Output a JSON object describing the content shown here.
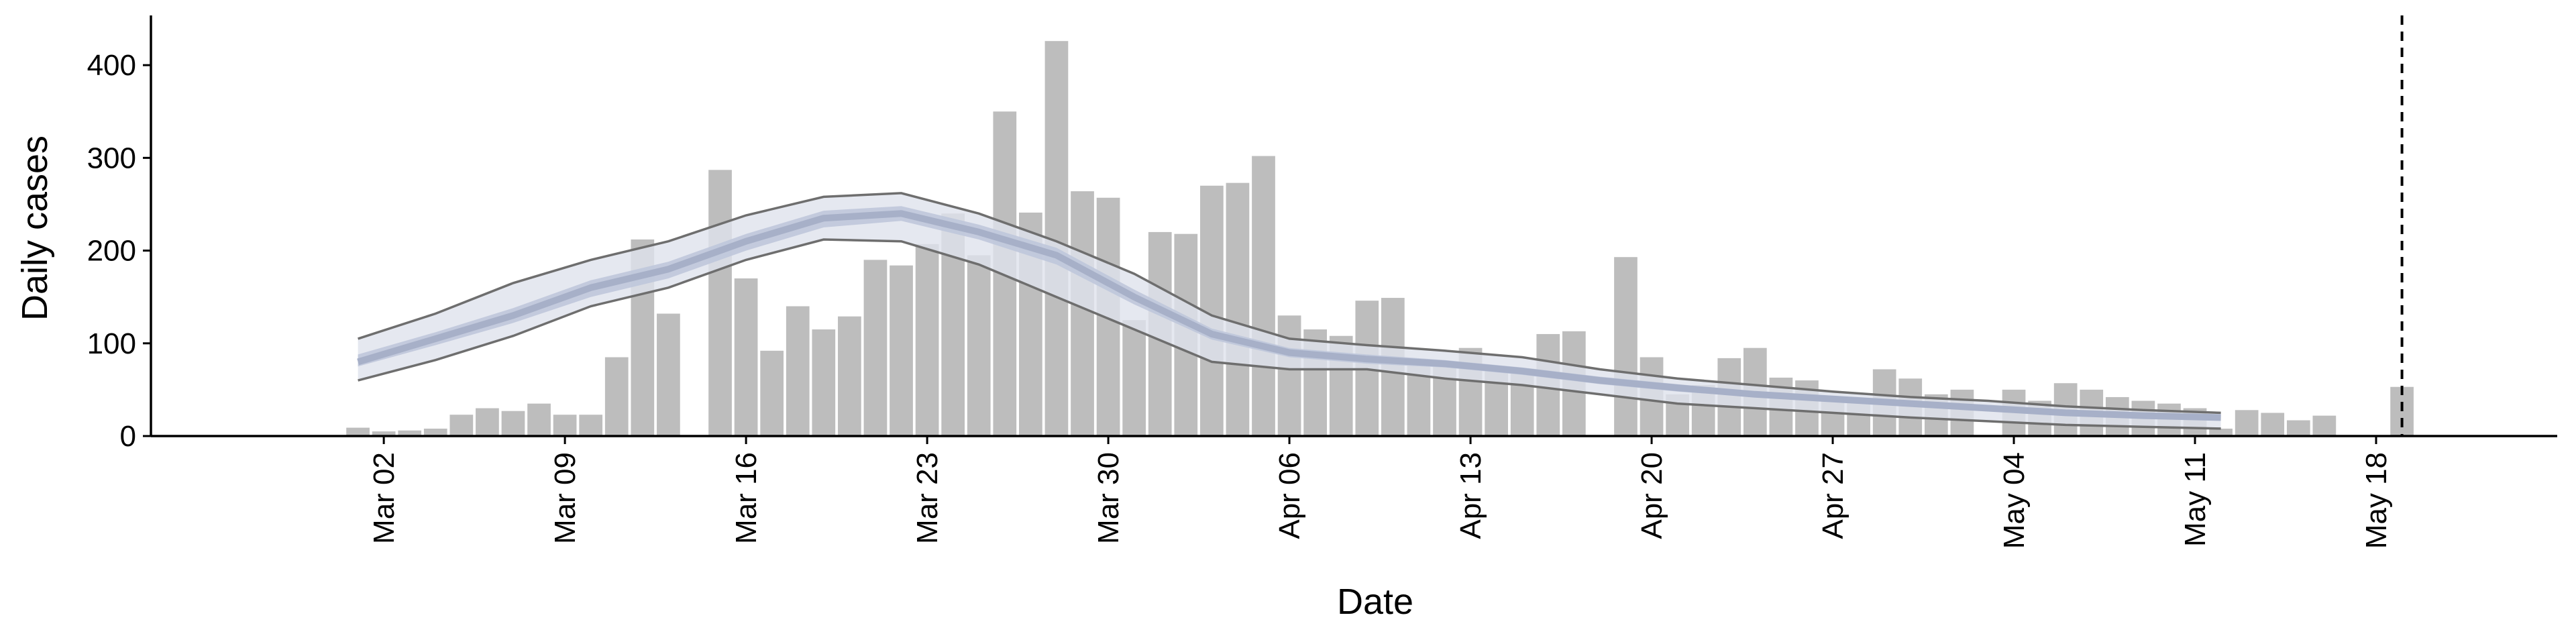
{
  "chart_data": {
    "type": "bar",
    "title": "",
    "xlabel": "Date",
    "ylabel": "Daily cases",
    "ylim": [
      0,
      450
    ],
    "yticks": [
      0,
      100,
      200,
      300,
      400
    ],
    "xlim": [
      "2020-02-22",
      "2020-05-25"
    ],
    "xticks": [
      "2020-03-02",
      "2020-03-09",
      "2020-03-16",
      "2020-03-23",
      "2020-03-30",
      "2020-04-06",
      "2020-04-13",
      "2020-04-20",
      "2020-04-27",
      "2020-05-04",
      "2020-05-11",
      "2020-05-18"
    ],
    "xtick_labels": [
      "Mar 02",
      "Mar 09",
      "Mar 16",
      "Mar 23",
      "Mar 30",
      "Apr 06",
      "Apr 13",
      "Apr 20",
      "Apr 27",
      "May 04",
      "May 11",
      "May 18"
    ],
    "grid": false,
    "legend": "none",
    "colors": {
      "bars": "#bdbdbd",
      "band_outer": "#dfe2ec",
      "band_inner": "#bfc6da",
      "median": "#a7b0c8",
      "bound_lines": "#6e6e6e",
      "axis": "#000000",
      "vline": "#000000"
    },
    "series": [
      {
        "kind": "bars",
        "x": [
          "2020-03-01",
          "2020-03-02",
          "2020-03-03",
          "2020-03-04",
          "2020-03-05",
          "2020-03-06",
          "2020-03-07",
          "2020-03-08",
          "2020-03-09",
          "2020-03-10",
          "2020-03-11",
          "2020-03-12",
          "2020-03-13",
          "2020-03-15",
          "2020-03-16",
          "2020-03-17",
          "2020-03-18",
          "2020-03-19",
          "2020-03-20",
          "2020-03-21",
          "2020-03-22",
          "2020-03-23",
          "2020-03-24",
          "2020-03-25",
          "2020-03-26",
          "2020-03-27",
          "2020-03-28",
          "2020-03-29",
          "2020-03-30",
          "2020-03-31",
          "2020-04-01",
          "2020-04-02",
          "2020-04-03",
          "2020-04-04",
          "2020-04-05",
          "2020-04-06",
          "2020-04-07",
          "2020-04-08",
          "2020-04-09",
          "2020-04-10",
          "2020-04-11",
          "2020-04-12",
          "2020-04-13",
          "2020-04-14",
          "2020-04-15",
          "2020-04-16",
          "2020-04-17",
          "2020-04-19",
          "2020-04-20",
          "2020-04-21",
          "2020-04-22",
          "2020-04-23",
          "2020-04-24",
          "2020-04-25",
          "2020-04-26",
          "2020-04-27",
          "2020-04-28",
          "2020-04-29",
          "2020-04-30",
          "2020-05-01",
          "2020-05-02",
          "2020-05-04",
          "2020-05-05",
          "2020-05-06",
          "2020-05-07",
          "2020-05-08",
          "2020-05-09",
          "2020-05-10",
          "2020-05-11",
          "2020-05-12",
          "2020-05-13",
          "2020-05-14",
          "2020-05-15",
          "2020-05-16",
          "2020-05-19"
        ],
        "values": [
          9,
          5,
          6,
          8,
          23,
          30,
          27,
          35,
          23,
          23,
          85,
          212,
          132,
          287,
          170,
          92,
          140,
          115,
          129,
          190,
          184,
          207,
          240,
          195,
          350,
          241,
          426,
          264,
          257,
          125,
          220,
          218,
          270,
          273,
          302,
          130,
          115,
          108,
          146,
          149,
          82,
          80,
          95,
          75,
          70,
          110,
          113,
          193,
          85,
          45,
          55,
          84,
          95,
          63,
          60,
          40,
          40,
          72,
          62,
          45,
          50,
          50,
          38,
          57,
          50,
          42,
          38,
          35,
          30,
          8,
          28,
          25,
          17,
          22,
          53
        ]
      },
      {
        "kind": "band",
        "name": "",
        "x": [
          "2020-03-01",
          "2020-03-04",
          "2020-03-07",
          "2020-03-10",
          "2020-03-13",
          "2020-03-16",
          "2020-03-19",
          "2020-03-22",
          "2020-03-25",
          "2020-03-28",
          "2020-03-31",
          "2020-04-03",
          "2020-04-06",
          "2020-04-09",
          "2020-04-12",
          "2020-04-15",
          "2020-04-18",
          "2020-04-21",
          "2020-04-24",
          "2020-04-27",
          "2020-04-30",
          "2020-05-03",
          "2020-05-06",
          "2020-05-09",
          "2020-05-12"
        ],
        "median": [
          80,
          105,
          130,
          160,
          180,
          210,
          235,
          240,
          220,
          195,
          150,
          110,
          90,
          83,
          78,
          70,
          60,
          52,
          45,
          40,
          35,
          30,
          25,
          22,
          20
        ],
        "inner_low": [
          75,
          98,
          122,
          150,
          170,
          200,
          225,
          232,
          212,
          185,
          142,
          104,
          85,
          78,
          74,
          66,
          56,
          48,
          42,
          37,
          32,
          28,
          22,
          19,
          17
        ],
        "inner_high": [
          88,
          112,
          138,
          168,
          188,
          218,
          243,
          248,
          228,
          203,
          158,
          116,
          95,
          88,
          82,
          74,
          64,
          56,
          48,
          43,
          38,
          33,
          28,
          25,
          23
        ],
        "lower": [
          60,
          82,
          108,
          140,
          160,
          190,
          212,
          210,
          185,
          150,
          115,
          80,
          72,
          72,
          62,
          55,
          45,
          35,
          30,
          25,
          20,
          16,
          12,
          10,
          8
        ],
        "upper": [
          105,
          132,
          165,
          190,
          210,
          238,
          258,
          262,
          240,
          210,
          175,
          130,
          105,
          98,
          92,
          85,
          72,
          62,
          55,
          48,
          42,
          38,
          32,
          28,
          25
        ]
      }
    ],
    "vline": "2020-05-19"
  }
}
